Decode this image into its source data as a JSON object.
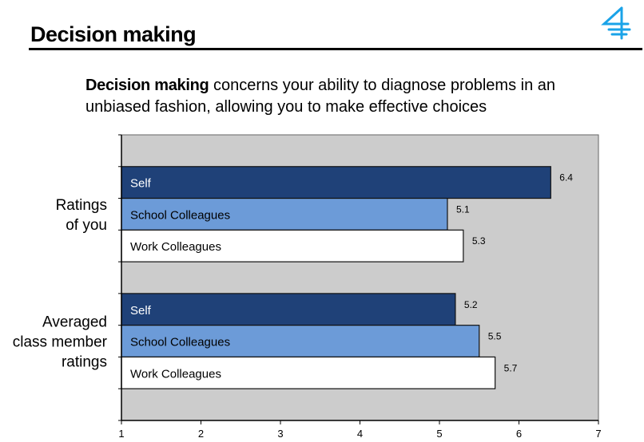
{
  "header": {
    "title": "Decision making",
    "logo": "stylized-4-logo-icon"
  },
  "description": {
    "bold": "Decision making",
    "rest": " concerns your ability to diagnose problems in an unbiased fashion, allowing you to make effective choices"
  },
  "colors": {
    "self": "#1f4178",
    "school": "#6c9bd8",
    "work": "#ffffff",
    "plot_bg": "#cccccc",
    "logo": "#1aa3e8"
  },
  "chart_data": {
    "type": "bar",
    "orientation": "horizontal",
    "title": "Decision making",
    "xlabel": "",
    "ylabel": "",
    "xlim": [
      1,
      7
    ],
    "xticks": [
      "1",
      "2",
      "3",
      "4",
      "5",
      "6",
      "7"
    ],
    "grid": false,
    "groups": [
      {
        "label_lines": [
          "Ratings",
          "of you"
        ],
        "bars": [
          {
            "name": "Self",
            "value": 6.4,
            "label": "6.4",
            "color_key": "self"
          },
          {
            "name": "School Colleagues",
            "value": 5.1,
            "label": "5.1",
            "color_key": "school"
          },
          {
            "name": "Work Colleagues",
            "value": 5.3,
            "label": "5.3",
            "color_key": "work"
          }
        ]
      },
      {
        "label_lines": [
          "Averaged",
          "class member",
          "ratings"
        ],
        "bars": [
          {
            "name": "Self",
            "value": 5.2,
            "label": "5.2",
            "color_key": "self"
          },
          {
            "name": "School Colleagues",
            "value": 5.5,
            "label": "5.5",
            "color_key": "school"
          },
          {
            "name": "Work Colleagues",
            "value": 5.7,
            "label": "5.7",
            "color_key": "work"
          }
        ]
      }
    ]
  }
}
